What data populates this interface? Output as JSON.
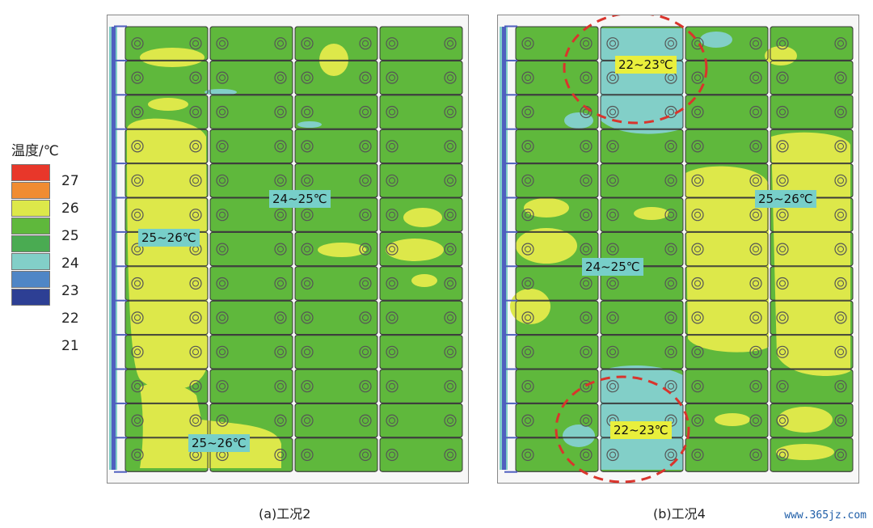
{
  "legend": {
    "title": "温度/℃",
    "items": [
      {
        "label": "27",
        "color": "#e8372a"
      },
      {
        "label": "26",
        "color": "#f08c32"
      },
      {
        "label": "25",
        "color": "#dde84a"
      },
      {
        "label": "24",
        "color": "#5fb83c"
      },
      {
        "label": "23",
        "color": "#4aab52"
      },
      {
        "label": "22",
        "color": "#82cfc8"
      },
      {
        "label": "21",
        "color": "#4f86c6"
      },
      {
        "label": "",
        "color": "#2d3f94"
      }
    ]
  },
  "panels": [
    {
      "caption": "(a)工况2",
      "labels": [
        {
          "text": "24~25℃",
          "style": "cyan"
        },
        {
          "text": "25~26℃",
          "style": "cyan"
        },
        {
          "text": "25~26℃",
          "style": "cyan"
        }
      ]
    },
    {
      "caption": "(b)工况4",
      "labels": [
        {
          "text": "22~23℃",
          "style": "yellow"
        },
        {
          "text": "25~26℃",
          "style": "cyan"
        },
        {
          "text": "24~25℃",
          "style": "cyan"
        },
        {
          "text": "22~23℃",
          "style": "yellow"
        }
      ]
    }
  ],
  "colors": {
    "green": "#5fb83c",
    "yellow": "#dde84a",
    "cyan": "#82cfc8",
    "manifold": "#4f5fbf",
    "circle_dashed": "#d9342c"
  },
  "watermark": "www.365jz.com"
}
